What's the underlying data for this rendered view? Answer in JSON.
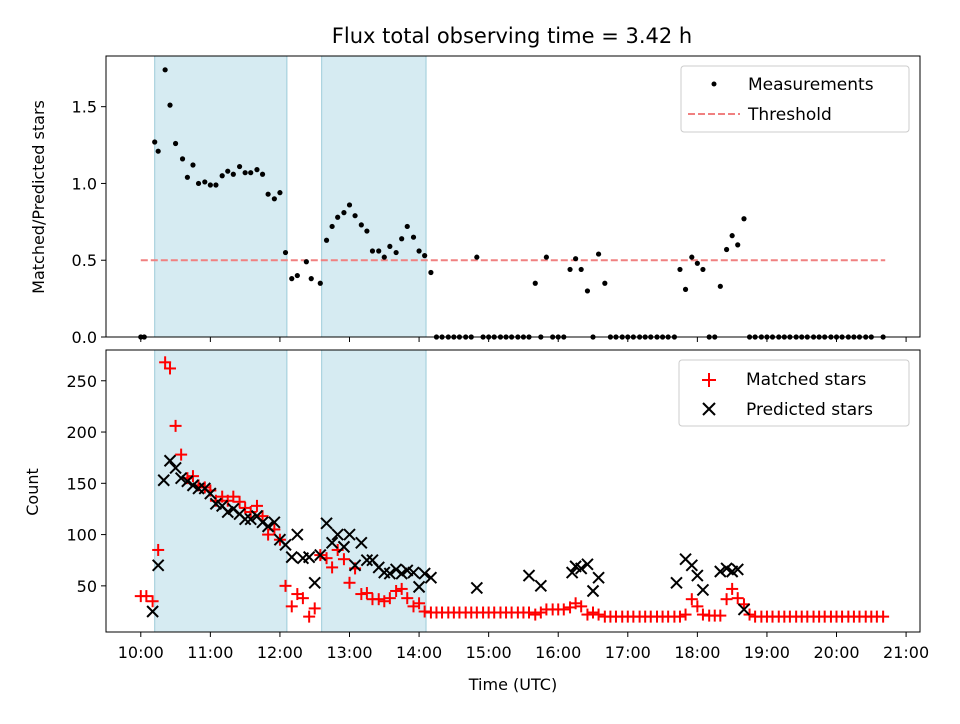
{
  "chart_data": [
    {
      "type": "scatter",
      "title": "Flux total observing time = 3.42 h",
      "ylabel": "Matched/Predicted stars",
      "xlabel": "",
      "xlim": [
        9.5,
        21.2
      ],
      "ylim": [
        0,
        1.83
      ],
      "yticks": [
        0,
        0.5,
        1.0,
        1.5
      ],
      "ytick_labels": [
        "0.0",
        "0.5",
        "1.0",
        "1.5"
      ],
      "xticks": [
        10,
        11,
        12,
        13,
        14,
        15,
        16,
        17,
        18,
        19,
        20,
        21
      ],
      "legend_position": "top-right",
      "shaded_intervals": [
        [
          10.2,
          12.1
        ],
        [
          12.6,
          14.1
        ]
      ],
      "threshold": {
        "name": "Threshold",
        "value": 0.5,
        "x_range": [
          10.0,
          20.7
        ],
        "color": "#f08080"
      },
      "series": [
        {
          "name": "Measurements",
          "color": "#000000",
          "x": [
            10.0,
            10.05,
            10.2,
            10.25,
            10.35,
            10.42,
            10.5,
            10.6,
            10.67,
            10.75,
            10.83,
            10.92,
            11.0,
            11.08,
            11.17,
            11.25,
            11.33,
            11.42,
            11.5,
            11.58,
            11.67,
            11.75,
            11.83,
            11.92,
            12.0,
            12.08,
            12.17,
            12.25,
            12.38,
            12.45,
            12.58,
            12.67,
            12.75,
            12.83,
            12.92,
            13.0,
            13.08,
            13.17,
            13.25,
            13.33,
            13.42,
            13.5,
            13.58,
            13.67,
            13.75,
            13.83,
            13.92,
            14.0,
            14.08,
            14.17,
            14.25,
            14.33,
            14.42,
            14.5,
            14.58,
            14.67,
            14.75,
            14.83,
            14.92,
            15.0,
            15.08,
            15.17,
            15.25,
            15.33,
            15.42,
            15.5,
            15.58,
            15.67,
            15.75,
            15.83,
            15.92,
            16.0,
            16.08,
            16.17,
            16.25,
            16.33,
            16.42,
            16.5,
            16.58,
            16.67,
            16.75,
            16.83,
            16.92,
            17.0,
            17.08,
            17.17,
            17.25,
            17.33,
            17.42,
            17.5,
            17.58,
            17.67,
            17.75,
            17.83,
            17.92,
            18.0,
            18.08,
            18.17,
            18.25,
            18.33,
            18.42,
            18.5,
            18.58,
            18.67,
            18.75,
            18.83,
            18.92,
            19.0,
            19.08,
            19.17,
            19.25,
            19.33,
            19.42,
            19.5,
            19.58,
            19.67,
            19.75,
            19.83,
            19.92,
            20.0,
            20.08,
            20.17,
            20.25,
            20.33,
            20.42,
            20.5,
            20.67
          ],
          "y": [
            0,
            0,
            1.27,
            1.21,
            1.74,
            1.51,
            1.26,
            1.16,
            1.04,
            1.12,
            1.0,
            1.01,
            0.99,
            0.99,
            1.05,
            1.08,
            1.06,
            1.11,
            1.07,
            1.07,
            1.09,
            1.06,
            0.93,
            0.9,
            0.94,
            0.55,
            0.38,
            0.4,
            0.49,
            0.38,
            0.35,
            0.63,
            0.72,
            0.78,
            0.81,
            0.86,
            0.79,
            0.73,
            0.69,
            0.56,
            0.56,
            0.52,
            0.59,
            0.55,
            0.64,
            0.72,
            0.65,
            0.56,
            0.53,
            0.42,
            0,
            0,
            0,
            0,
            0,
            0,
            0,
            0.52,
            0,
            0,
            0,
            0,
            0,
            0,
            0,
            0,
            0,
            0.35,
            0,
            0.52,
            0,
            0,
            0,
            0.44,
            0.51,
            0.44,
            0.3,
            0,
            0.54,
            0.35,
            0,
            0,
            0,
            0,
            0,
            0,
            0,
            0,
            0,
            0,
            0,
            0,
            0.44,
            0.31,
            0.52,
            0.48,
            0.44,
            0,
            0,
            0.33,
            0.57,
            0.66,
            0.6,
            0.77,
            0,
            0,
            0,
            0,
            0,
            0,
            0,
            0,
            0,
            0,
            0,
            0,
            0,
            0,
            0,
            0,
            0,
            0,
            0,
            0,
            0,
            0,
            0
          ]
        }
      ]
    },
    {
      "type": "scatter",
      "title": "",
      "ylabel": "Count",
      "xlabel": "Time (UTC)",
      "xlim": [
        9.5,
        21.2
      ],
      "ylim": [
        5,
        280
      ],
      "yticks": [
        50,
        100,
        150,
        200,
        250
      ],
      "ytick_labels": [
        "50",
        "100",
        "150",
        "200",
        "250"
      ],
      "xticks": [
        10,
        11,
        12,
        13,
        14,
        15,
        16,
        17,
        18,
        19,
        20,
        21
      ],
      "xtick_labels": [
        "10:00",
        "11:00",
        "12:00",
        "13:00",
        "14:00",
        "15:00",
        "16:00",
        "17:00",
        "18:00",
        "19:00",
        "20:00",
        "21:00"
      ],
      "legend_position": "top-right",
      "shaded_intervals": [
        [
          10.2,
          12.1
        ],
        [
          12.6,
          14.1
        ]
      ],
      "series": [
        {
          "name": "Matched stars",
          "color": "#ff0000",
          "marker": "plus",
          "x": [
            10.0,
            10.08,
            10.17,
            10.25,
            10.35,
            10.42,
            10.5,
            10.58,
            10.67,
            10.75,
            10.83,
            10.92,
            11.0,
            11.08,
            11.17,
            11.25,
            11.33,
            11.42,
            11.5,
            11.58,
            11.67,
            11.75,
            11.83,
            11.92,
            12.0,
            12.08,
            12.17,
            12.25,
            12.33,
            12.42,
            12.5,
            12.58,
            12.67,
            12.75,
            12.83,
            12.92,
            13.0,
            13.08,
            13.17,
            13.25,
            13.33,
            13.42,
            13.5,
            13.58,
            13.67,
            13.75,
            13.83,
            13.92,
            14.0,
            14.08,
            14.17,
            14.25,
            14.33,
            14.42,
            14.5,
            14.58,
            14.67,
            14.75,
            14.83,
            14.92,
            15.0,
            15.08,
            15.17,
            15.25,
            15.33,
            15.42,
            15.5,
            15.58,
            15.67,
            15.75,
            15.83,
            15.92,
            16.0,
            16.08,
            16.17,
            16.25,
            16.33,
            16.42,
            16.5,
            16.58,
            16.67,
            16.75,
            16.83,
            16.92,
            17.0,
            17.08,
            17.17,
            17.25,
            17.33,
            17.42,
            17.5,
            17.58,
            17.67,
            17.75,
            17.83,
            17.92,
            18.0,
            18.08,
            18.17,
            18.25,
            18.33,
            18.42,
            18.5,
            18.58,
            18.67,
            18.75,
            18.83,
            18.92,
            19.0,
            19.08,
            19.17,
            19.25,
            19.33,
            19.42,
            19.5,
            19.58,
            19.67,
            19.75,
            19.83,
            19.92,
            20.0,
            20.08,
            20.17,
            20.25,
            20.33,
            20.42,
            20.5,
            20.58,
            20.67
          ],
          "y": [
            40,
            40,
            35,
            85,
            268,
            262,
            206,
            178,
            155,
            157,
            148,
            146,
            143,
            133,
            137,
            133,
            137,
            132,
            126,
            122,
            128,
            118,
            100,
            105,
            95,
            50,
            30,
            42,
            38,
            20,
            28,
            80,
            77,
            68,
            85,
            76,
            53,
            67,
            42,
            43,
            37,
            37,
            35,
            38,
            45,
            47,
            38,
            30,
            33,
            25,
            24,
            24,
            24,
            24,
            24,
            24,
            24,
            24,
            24,
            24,
            24,
            24,
            24,
            24,
            24,
            24,
            24,
            24,
            22,
            24,
            27,
            27,
            27,
            27,
            29,
            33,
            30,
            22,
            24,
            22,
            20,
            20,
            20,
            20,
            20,
            20,
            20,
            20,
            20,
            20,
            20,
            20,
            20,
            20,
            22,
            37,
            30,
            22,
            21,
            21,
            21,
            37,
            47,
            38,
            32,
            22,
            20,
            20,
            20,
            20,
            20,
            20,
            20,
            20,
            20,
            20,
            20,
            20,
            20,
            20,
            20,
            20,
            20,
            20,
            20,
            20,
            20,
            20,
            20
          ]
        },
        {
          "name": "Predicted stars",
          "color": "#000000",
          "marker": "x",
          "x": [
            10.17,
            10.25,
            10.33,
            10.42,
            10.5,
            10.58,
            10.67,
            10.75,
            10.83,
            10.92,
            11.0,
            11.08,
            11.17,
            11.25,
            11.33,
            11.42,
            11.5,
            11.58,
            11.67,
            11.75,
            11.83,
            11.92,
            12.0,
            12.08,
            12.17,
            12.25,
            12.33,
            12.42,
            12.5,
            12.58,
            12.67,
            12.75,
            12.83,
            12.92,
            13.0,
            13.08,
            13.17,
            13.25,
            13.33,
            13.42,
            13.5,
            13.58,
            13.67,
            13.75,
            13.83,
            13.92,
            14.0,
            14.08,
            14.17,
            14.83,
            15.58,
            15.75,
            16.2,
            16.25,
            16.33,
            16.42,
            16.5,
            16.58,
            17.7,
            17.83,
            17.92,
            18.0,
            18.08,
            18.33,
            18.42,
            18.5,
            18.58,
            18.67
          ],
          "y": [
            25,
            70,
            153,
            172,
            165,
            155,
            152,
            148,
            145,
            145,
            140,
            130,
            128,
            122,
            125,
            120,
            115,
            115,
            118,
            112,
            108,
            112,
            95,
            90,
            78,
            100,
            77,
            78,
            53,
            80,
            111,
            92,
            100,
            88,
            100,
            70,
            92,
            75,
            75,
            68,
            63,
            62,
            66,
            62,
            65,
            63,
            49,
            62,
            58,
            48,
            60,
            50,
            63,
            69,
            67,
            71,
            45,
            58,
            53,
            76,
            70,
            60,
            46,
            64,
            67,
            64,
            66,
            27
          ]
        }
      ]
    }
  ]
}
